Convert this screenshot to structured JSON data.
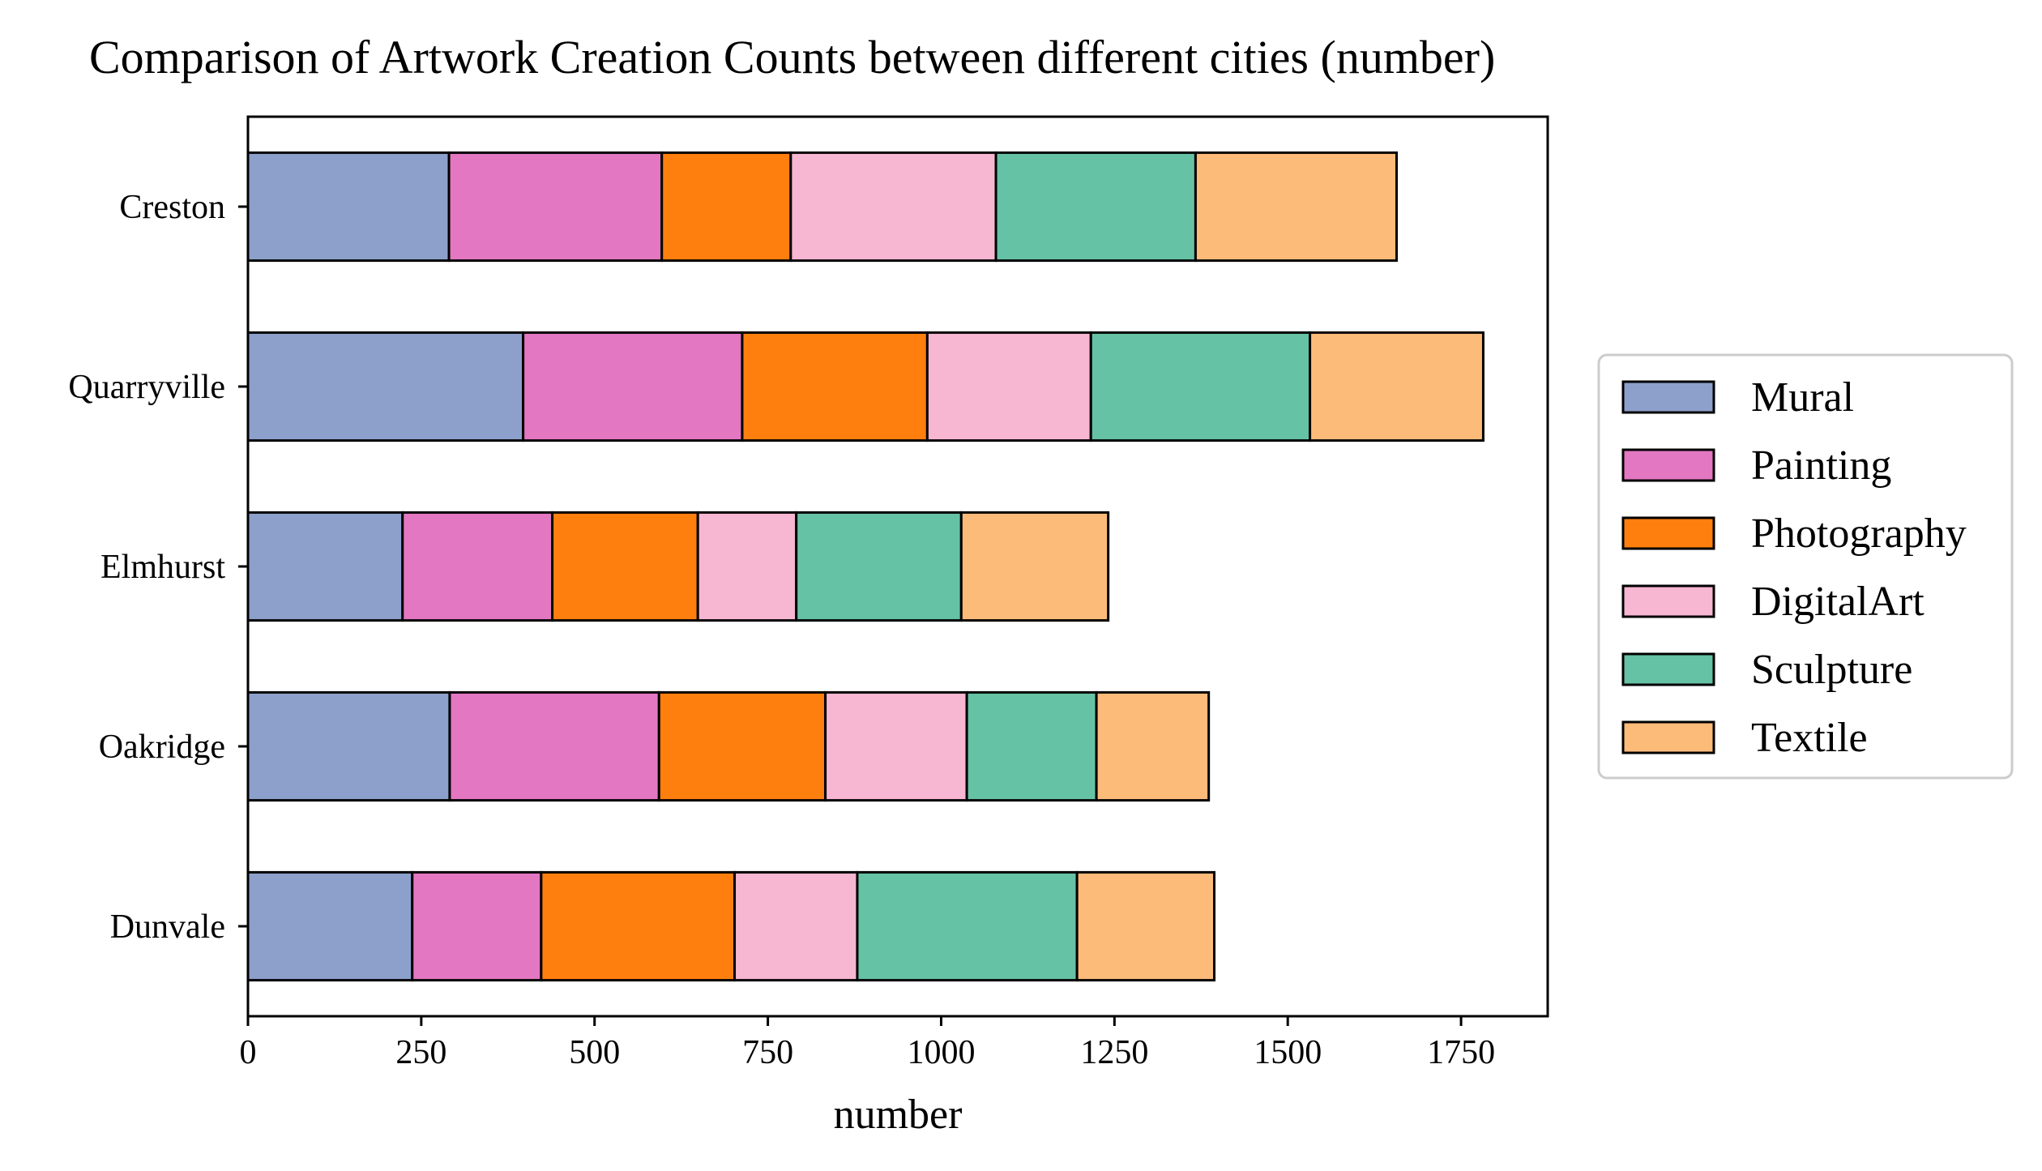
{
  "chart_data": {
    "type": "bar",
    "orientation": "horizontal",
    "stacked": true,
    "title": "Comparison of Artwork Creation Counts between different cities (number)",
    "xlabel": "number",
    "ylabel": "",
    "xlim": [
      0,
      1875
    ],
    "xticks": [
      0,
      250,
      500,
      750,
      1000,
      1250,
      1500,
      1750
    ],
    "xtick_labels": [
      "0",
      "250",
      "500",
      "750",
      "1000",
      "1250",
      "1500",
      "1750"
    ],
    "categories": [
      "Creston",
      "Quarryville",
      "Elmhurst",
      "Oakridge",
      "Dunvale"
    ],
    "series": [
      {
        "name": "Mural",
        "color": "#8da0cb",
        "values": [
          290,
          397,
          223,
          291,
          237
        ]
      },
      {
        "name": "Painting",
        "color": "#e377c2",
        "values": [
          307,
          316,
          216,
          302,
          186
        ]
      },
      {
        "name": "Photography",
        "color": "#ff7f0e",
        "values": [
          186,
          267,
          210,
          240,
          279
        ]
      },
      {
        "name": "DigitalArt",
        "color": "#f7b6d2",
        "values": [
          296,
          236,
          142,
          204,
          177
        ]
      },
      {
        "name": "Sculpture",
        "color": "#66c2a5",
        "values": [
          288,
          316,
          238,
          187,
          317
        ]
      },
      {
        "name": "Textile",
        "color": "#fdbb7a",
        "values": [
          290,
          250,
          212,
          162,
          198
        ]
      }
    ],
    "grid": false,
    "legend_position": "right",
    "edge_color": "#000000"
  }
}
